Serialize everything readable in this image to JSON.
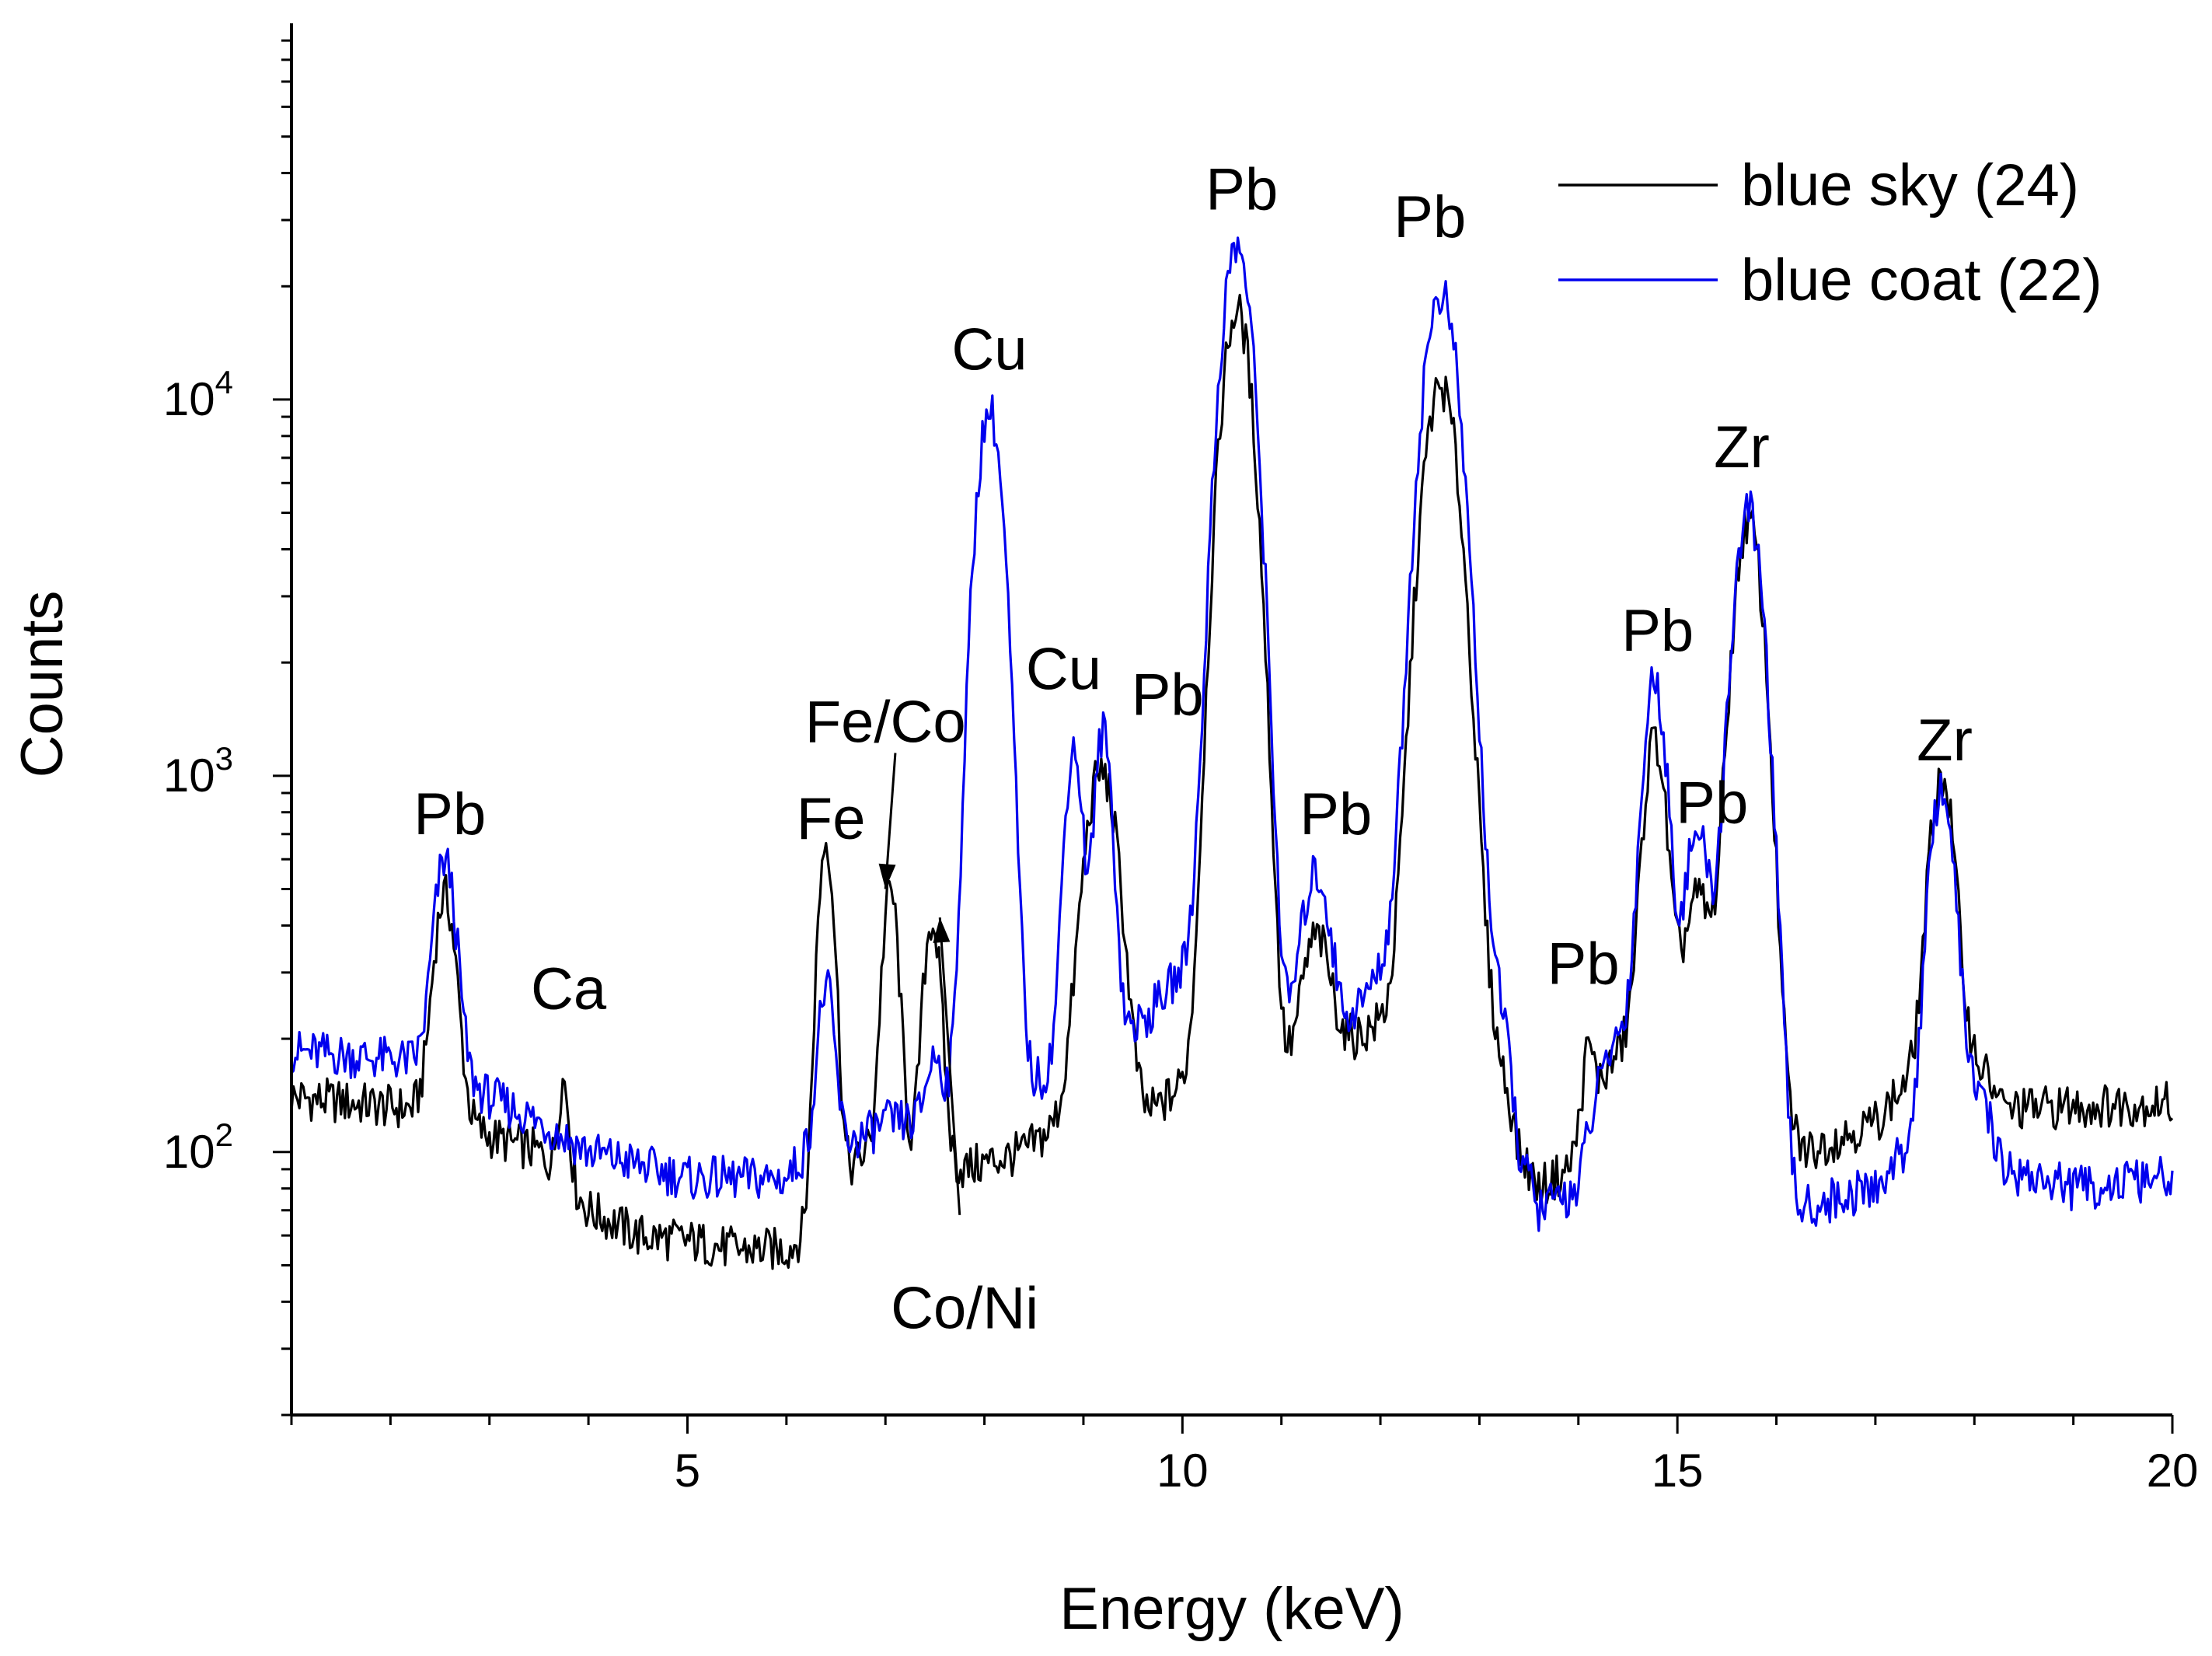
{
  "chart_data": {
    "type": "line",
    "xlabel": "Energy (keV)",
    "ylabel": "Counts",
    "yscale": "log",
    "xlim": [
      1,
      20
    ],
    "ylim": [
      20,
      100000
    ],
    "x_ticks": [
      {
        "value": 5,
        "label": "5"
      },
      {
        "value": 10,
        "label": "10"
      },
      {
        "value": 15,
        "label": "15"
      },
      {
        "value": 20,
        "label": "20"
      }
    ],
    "y_ticks": [
      {
        "value": 100,
        "base": "10",
        "exp": "2"
      },
      {
        "value": 1000,
        "base": "10",
        "exp": "3"
      },
      {
        "value": 10000,
        "base": "10",
        "exp": "4"
      }
    ],
    "legend": {
      "position": "top-right"
    },
    "series": [
      {
        "name": "blue sky (24)",
        "color": "#000000",
        "baseline": [
          [
            1.0,
            140
          ],
          [
            2.2,
            130
          ],
          [
            2.4,
            135
          ],
          [
            3.0,
            110
          ],
          [
            3.5,
            100
          ],
          [
            4.0,
            70
          ],
          [
            4.5,
            60
          ],
          [
            5.0,
            58
          ],
          [
            5.5,
            55
          ],
          [
            6.0,
            55
          ],
          [
            6.2,
            60
          ],
          [
            6.8,
            100
          ],
          [
            7.2,
            95
          ],
          [
            7.8,
            90
          ],
          [
            8.4,
            100
          ],
          [
            8.6,
            110
          ],
          [
            9.0,
            130
          ],
          [
            9.6,
            120
          ],
          [
            10.0,
            150
          ],
          [
            10.5,
            200
          ],
          [
            11.0,
            150
          ],
          [
            11.6,
            190
          ],
          [
            12.0,
            220
          ],
          [
            13.0,
            250
          ],
          [
            13.4,
            100
          ],
          [
            13.6,
            80
          ],
          [
            13.9,
            90
          ],
          [
            14.2,
            150
          ],
          [
            14.8,
            250
          ],
          [
            15.5,
            300
          ],
          [
            16.0,
            120
          ],
          [
            16.3,
            100
          ],
          [
            17.0,
            120
          ],
          [
            17.3,
            150
          ],
          [
            17.7,
            200
          ],
          [
            18.0,
            180
          ],
          [
            18.3,
            130
          ],
          [
            20.0,
            135
          ]
        ],
        "peaks": [
          [
            2.55,
            0.1,
            350
          ],
          [
            3.75,
            0.05,
            70
          ],
          [
            6.4,
            0.075,
            600
          ],
          [
            7.05,
            0.075,
            400
          ],
          [
            7.47,
            0.08,
            320
          ],
          [
            9.18,
            0.15,
            900
          ],
          [
            10.55,
            0.14,
            17000
          ],
          [
            11.35,
            0.13,
            200
          ],
          [
            12.61,
            0.16,
            10500
          ],
          [
            14.1,
            0.05,
            60
          ],
          [
            14.77,
            0.1,
            1000
          ],
          [
            15.2,
            0.1,
            200
          ],
          [
            15.72,
            0.13,
            4500
          ],
          [
            17.67,
            0.11,
            800
          ]
        ]
      },
      {
        "name": "blue coat (22)",
        "color": "#0000ee",
        "baseline": [
          [
            1.0,
            185
          ],
          [
            2.2,
            175
          ],
          [
            2.4,
            175
          ],
          [
            3.0,
            140
          ],
          [
            3.5,
            120
          ],
          [
            4.0,
            100
          ],
          [
            5.0,
            85
          ],
          [
            6.0,
            85
          ],
          [
            6.2,
            100
          ],
          [
            6.8,
            110
          ],
          [
            7.0,
            120
          ],
          [
            7.8,
            120
          ],
          [
            8.5,
            150
          ],
          [
            9.0,
            200
          ],
          [
            9.6,
            220
          ],
          [
            10.0,
            300
          ],
          [
            10.5,
            500
          ],
          [
            11.0,
            200
          ],
          [
            11.6,
            200
          ],
          [
            12.0,
            300
          ],
          [
            12.6,
            500
          ],
          [
            13.0,
            400
          ],
          [
            13.4,
            100
          ],
          [
            13.6,
            70
          ],
          [
            14.0,
            80
          ],
          [
            14.3,
            180
          ],
          [
            14.8,
            300
          ],
          [
            15.5,
            300
          ],
          [
            16.0,
            130
          ],
          [
            16.2,
            70
          ],
          [
            17.0,
            80
          ],
          [
            17.3,
            100
          ],
          [
            18.0,
            150
          ],
          [
            18.3,
            90
          ],
          [
            19.0,
            80
          ],
          [
            20.0,
            85
          ]
        ],
        "peaks": [
          [
            2.55,
            0.1,
            430
          ],
          [
            6.4,
            0.075,
            170
          ],
          [
            7.5,
            0.08,
            60
          ],
          [
            8.05,
            0.12,
            9200
          ],
          [
            8.9,
            0.08,
            1000
          ],
          [
            9.2,
            0.08,
            1100
          ],
          [
            10.55,
            0.14,
            25000
          ],
          [
            11.35,
            0.13,
            350
          ],
          [
            12.61,
            0.16,
            18500
          ],
          [
            14.77,
            0.1,
            1500
          ],
          [
            15.2,
            0.1,
            400
          ],
          [
            15.72,
            0.13,
            4800
          ],
          [
            17.67,
            0.11,
            800
          ]
        ]
      }
    ],
    "annotations": [
      {
        "text": "Pb",
        "x": 2.6,
        "y": 700
      },
      {
        "text": "Ca",
        "x": 3.8,
        "y": 240
      },
      {
        "text": "Fe",
        "x": 6.45,
        "y": 680
      },
      {
        "text": "Fe/Co",
        "x": 7.0,
        "y": 1230
      },
      {
        "text": "Co/Ni",
        "x": 7.8,
        "y": 34
      },
      {
        "text": "Cu",
        "x": 8.05,
        "y": 12000
      },
      {
        "text": "Cu",
        "x": 8.8,
        "y": 1700
      },
      {
        "text": "Pb",
        "x": 9.85,
        "y": 1450
      },
      {
        "text": "Pb",
        "x": 10.6,
        "y": 32000
      },
      {
        "text": "Pb",
        "x": 11.55,
        "y": 700
      },
      {
        "text": "Pb",
        "x": 12.5,
        "y": 27000
      },
      {
        "text": "Pb",
        "x": 14.05,
        "y": 280
      },
      {
        "text": "Pb",
        "x": 14.8,
        "y": 2150
      },
      {
        "text": "Pb",
        "x": 15.35,
        "y": 750
      },
      {
        "text": "Zr",
        "x": 15.65,
        "y": 6600
      },
      {
        "text": "Zr",
        "x": 17.7,
        "y": 1100
      }
    ],
    "arrows": [
      {
        "from": [
          7.1,
          1150
        ],
        "to": [
          7.0,
          500
        ]
      },
      {
        "from": [
          7.75,
          68
        ],
        "to": [
          7.55,
          420
        ]
      }
    ]
  }
}
